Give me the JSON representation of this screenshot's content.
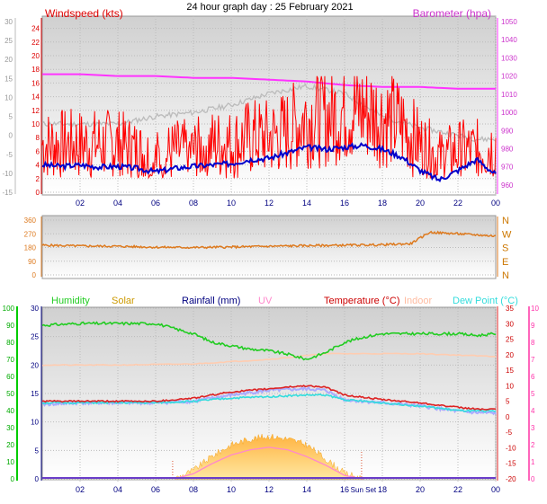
{
  "title": "24 hour graph day : 25 February 2021",
  "x_ticks": [
    "02",
    "04",
    "06",
    "08",
    "10",
    "12",
    "14",
    "16",
    "18",
    "20",
    "22",
    "00"
  ],
  "x_ticks_bottom": [
    "02",
    "04",
    "06",
    "08",
    "10",
    "12",
    "14",
    "16",
    "Sun Set",
    "18",
    "20",
    "22",
    "00"
  ],
  "colors": {
    "wind": "#ff0000",
    "windavg": "#0000cc",
    "baro": "#ff33ff",
    "baro_grey": "#bbbbbb",
    "dir": "#dd7a1f",
    "humidity": "#22cc22",
    "solar": "#ffcc55",
    "rainfall": "#000080",
    "uv": "#ff88cc",
    "temperature": "#dd2222",
    "indoor": "#ffccb0",
    "dewpoint": "#33dddd",
    "feels": "#aaaaff",
    "axis_left": "#00aa00",
    "axis_right": "#ff33aa"
  },
  "chart_data": [
    {
      "type": "line",
      "panel": "wind-barometer",
      "left_label": "Windspeed (kts)",
      "right_label": "Barometer (hpa)",
      "left_outer_axis": {
        "ticks": [
          "30",
          "25",
          "20",
          "15",
          "10",
          "5",
          "0",
          "-5",
          "-10",
          "-15"
        ],
        "ylim": [
          -15,
          30
        ]
      },
      "left_inner_axis": {
        "ticks": [
          "24",
          "22",
          "20",
          "18",
          "16",
          "14",
          "12",
          "10",
          "8",
          "6",
          "4",
          "2",
          "0"
        ],
        "ylim": [
          0,
          25
        ]
      },
      "right_axis": {
        "ticks": [
          "1050",
          "1040",
          "1030",
          "1020",
          "1010",
          "1000",
          "990",
          "980",
          "970",
          "960"
        ],
        "ylim": [
          956,
          1050
        ]
      },
      "x_range_hours": [
        0,
        24
      ],
      "series": [
        {
          "key": "gust",
          "x": [
            0,
            1,
            2,
            3,
            4,
            5,
            6,
            7,
            8,
            9,
            10,
            11,
            12,
            13,
            14,
            15,
            16,
            17,
            18,
            19,
            20,
            21,
            22,
            23,
            24
          ],
          "values": [
            7,
            7,
            7,
            7,
            7,
            6,
            5,
            6,
            6,
            7,
            7,
            8,
            8,
            9,
            11,
            11,
            12,
            12,
            11,
            10,
            7,
            5,
            6,
            6,
            7
          ]
        },
        {
          "key": "avg",
          "x": [
            0,
            1,
            2,
            3,
            4,
            5,
            6,
            7,
            8,
            9,
            10,
            11,
            12,
            13,
            14,
            15,
            16,
            17,
            18,
            19,
            20,
            21,
            22,
            23,
            24
          ],
          "values": [
            4,
            3.8,
            4,
            3.7,
            3.8,
            3.5,
            3,
            3.5,
            3.8,
            4,
            4.2,
            4.8,
            5,
            5.8,
            6.6,
            6.3,
            6.6,
            6.9,
            6.3,
            5.2,
            3.2,
            1.8,
            3.2,
            4.8,
            2.6
          ]
        },
        {
          "key": "baro",
          "x": [
            0,
            2,
            4,
            6,
            8,
            10,
            12,
            14,
            16,
            18,
            20,
            22,
            24
          ],
          "values": [
            1021,
            1021,
            1020,
            1020,
            1019,
            1019,
            1018,
            1017,
            1015,
            1014,
            1014,
            1013,
            1013
          ]
        },
        {
          "key": "windavg_grey",
          "x": [
            0,
            2,
            4,
            6,
            8,
            10,
            12,
            14,
            16,
            17,
            18,
            20,
            22,
            23,
            24
          ],
          "values": [
            3,
            3,
            3,
            5,
            6,
            8,
            11,
            13,
            11,
            8,
            5,
            2,
            0,
            -1,
            -1
          ]
        }
      ]
    },
    {
      "type": "line",
      "panel": "wind-direction",
      "left_axis": {
        "ticks": [
          "360",
          "270",
          "180",
          "90",
          "0"
        ],
        "ylim": [
          0,
          360
        ]
      },
      "right_axis": {
        "ticks": [
          "N",
          "W",
          "S",
          "E",
          "N"
        ]
      },
      "series": [
        {
          "key": "direction",
          "x": [
            0,
            2,
            4,
            6,
            8,
            10,
            12,
            14,
            16,
            18,
            19.5,
            20.5,
            22,
            24
          ],
          "values": [
            195,
            190,
            188,
            182,
            180,
            183,
            188,
            192,
            195,
            198,
            205,
            280,
            270,
            255
          ]
        }
      ]
    },
    {
      "type": "line",
      "panel": "climate",
      "legend": [
        "Humidity",
        "Solar",
        "Rainfall (mm)",
        "UV",
        "Temperature (°C)",
        "Indoor",
        "Dew Point (°C)"
      ],
      "left_outer_axis": {
        "ticks": [
          "100",
          "90",
          "80",
          "70",
          "60",
          "50",
          "40",
          "30",
          "20",
          "10",
          "0"
        ],
        "ylim": [
          0,
          100
        ]
      },
      "left_inner_axis": {
        "ticks": [
          "30",
          "25",
          "20",
          "15",
          "10",
          "5",
          "0"
        ],
        "ylim": [
          0,
          30
        ]
      },
      "right_inner_axis": {
        "ticks": [
          "35",
          "30",
          "25",
          "20",
          "15",
          "10",
          "5",
          "0",
          "-5",
          "-10",
          "-15",
          "-20"
        ],
        "ylim": [
          -20,
          35
        ]
      },
      "right_outer_axis": {
        "ticks": [
          "10",
          "9",
          "8",
          "7",
          "6",
          "5",
          "4",
          "3",
          "2",
          "1",
          "0"
        ],
        "ylim": [
          0,
          10
        ]
      },
      "annotations": [
        "Sun Set"
      ],
      "series": [
        {
          "key": "humidity",
          "x": [
            0,
            2,
            4,
            6,
            7,
            8,
            9,
            10,
            11,
            12,
            13,
            14,
            15,
            16,
            17,
            18,
            20,
            22,
            23,
            24
          ],
          "values": [
            90,
            91,
            91,
            91,
            88,
            85,
            80,
            78,
            76,
            75,
            73,
            70,
            74,
            80,
            83,
            85,
            85,
            85,
            84,
            85
          ]
        },
        {
          "key": "temperature",
          "x": [
            0,
            2,
            4,
            6,
            8,
            10,
            12,
            13,
            14,
            15,
            16,
            18,
            20,
            22,
            23,
            24
          ],
          "values": [
            5,
            5,
            5,
            5,
            6,
            8,
            9,
            9.6,
            10,
            9.5,
            7,
            5.5,
            4.5,
            3,
            2.5,
            2.3
          ]
        },
        {
          "key": "dewpoint",
          "x": [
            0,
            2,
            4,
            6,
            8,
            10,
            12,
            14,
            15,
            16,
            18,
            20,
            22,
            23,
            24
          ],
          "values": [
            4.5,
            4.5,
            4.5,
            4.5,
            5,
            6,
            6.5,
            7,
            7,
            5.5,
            4.5,
            3.5,
            2,
            1.8,
            1.8
          ]
        },
        {
          "key": "feels",
          "x": [
            0,
            2,
            4,
            6,
            8,
            10,
            12,
            14,
            15,
            16,
            18,
            20,
            22,
            23,
            24
          ],
          "values": [
            4,
            4.5,
            4.5,
            4.5,
            5,
            7,
            8.5,
            9,
            8.5,
            5.5,
            4.5,
            3.5,
            1.8,
            1.3,
            1.2
          ]
        },
        {
          "key": "indoor",
          "x": [
            0,
            4,
            8,
            12,
            15,
            18,
            20,
            24
          ],
          "values": [
            20,
            20,
            20.2,
            21,
            22,
            22,
            22,
            21.5
          ]
        },
        {
          "key": "solar",
          "x": [
            7,
            8,
            9,
            10,
            11,
            12,
            13,
            14,
            15,
            16,
            17
          ],
          "values": [
            0,
            1.5,
            4,
            6,
            7,
            7.5,
            7,
            6,
            3.5,
            1,
            0
          ]
        },
        {
          "key": "uv",
          "x": [
            7,
            8,
            9,
            10,
            11,
            12,
            13,
            14,
            15,
            16,
            17
          ],
          "values": [
            0,
            0.3,
            0.9,
            1.4,
            1.7,
            1.85,
            1.7,
            1.3,
            0.8,
            0.2,
            0
          ]
        },
        {
          "key": "rainfall",
          "x": [
            0,
            24
          ],
          "values": [
            0,
            0
          ]
        }
      ]
    }
  ]
}
